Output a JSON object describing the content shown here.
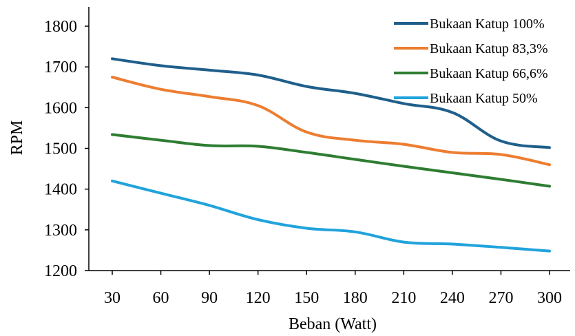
{
  "chart_data": {
    "type": "line",
    "xlabel": "Beban (Watt)",
    "ylabel": "RPM",
    "x": [
      30,
      60,
      90,
      120,
      150,
      180,
      210,
      240,
      270,
      300
    ],
    "ylim": [
      1200,
      1800
    ],
    "yticks": [
      1200,
      1300,
      1400,
      1500,
      1600,
      1700,
      1800
    ],
    "grid": false,
    "legend_position": "top-right",
    "series": [
      {
        "name": "Bukaan Katup 100%",
        "color": "#1f5f8b",
        "values": [
          1720,
          1703,
          1692,
          1680,
          1652,
          1635,
          1610,
          1588,
          1518,
          1502
        ]
      },
      {
        "name": "Bukaan Katup 83,3%",
        "color": "#ed7d31",
        "values": [
          1675,
          1645,
          1627,
          1605,
          1540,
          1520,
          1510,
          1490,
          1485,
          1460
        ]
      },
      {
        "name": "Bukaan Katup 66,6%",
        "color": "#2e7d32",
        "values": [
          1534,
          1520,
          1507,
          1505,
          1490,
          1473,
          1456,
          1440,
          1424,
          1407
        ]
      },
      {
        "name": "Bukaan Katup 50%",
        "color": "#21a3dc",
        "values": [
          1420,
          1390,
          1360,
          1325,
          1304,
          1295,
          1270,
          1265,
          1257,
          1248
        ]
      }
    ]
  }
}
